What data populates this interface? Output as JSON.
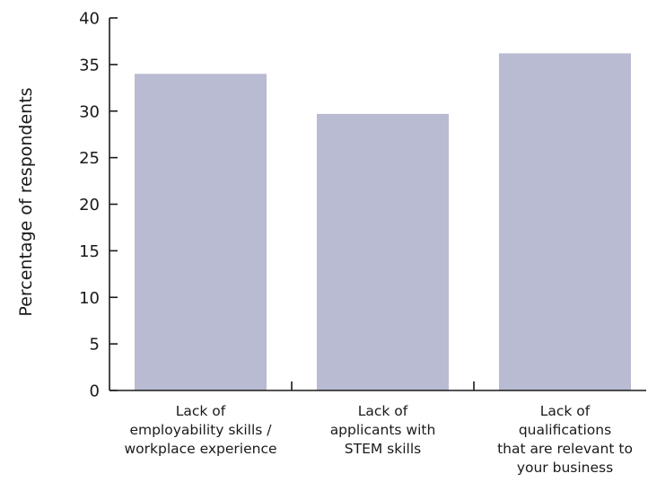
{
  "chart_data": {
    "type": "bar",
    "title": "",
    "xlabel": "",
    "ylabel": "Percentage of respondents",
    "ylim": [
      0,
      40
    ],
    "yticks": [
      0,
      5,
      10,
      15,
      20,
      25,
      30,
      35,
      40
    ],
    "grid": false,
    "legend": "none",
    "bar_color": "#b8bbd1",
    "categories": [
      [
        "Lack of",
        "employability skills /",
        "workplace experience"
      ],
      [
        "Lack of",
        "applicants with",
        "STEM skills"
      ],
      [
        "Lack of",
        "qualifications",
        "that are relevant to",
        "your business"
      ]
    ],
    "values": [
      34,
      29.7,
      36.2
    ]
  }
}
